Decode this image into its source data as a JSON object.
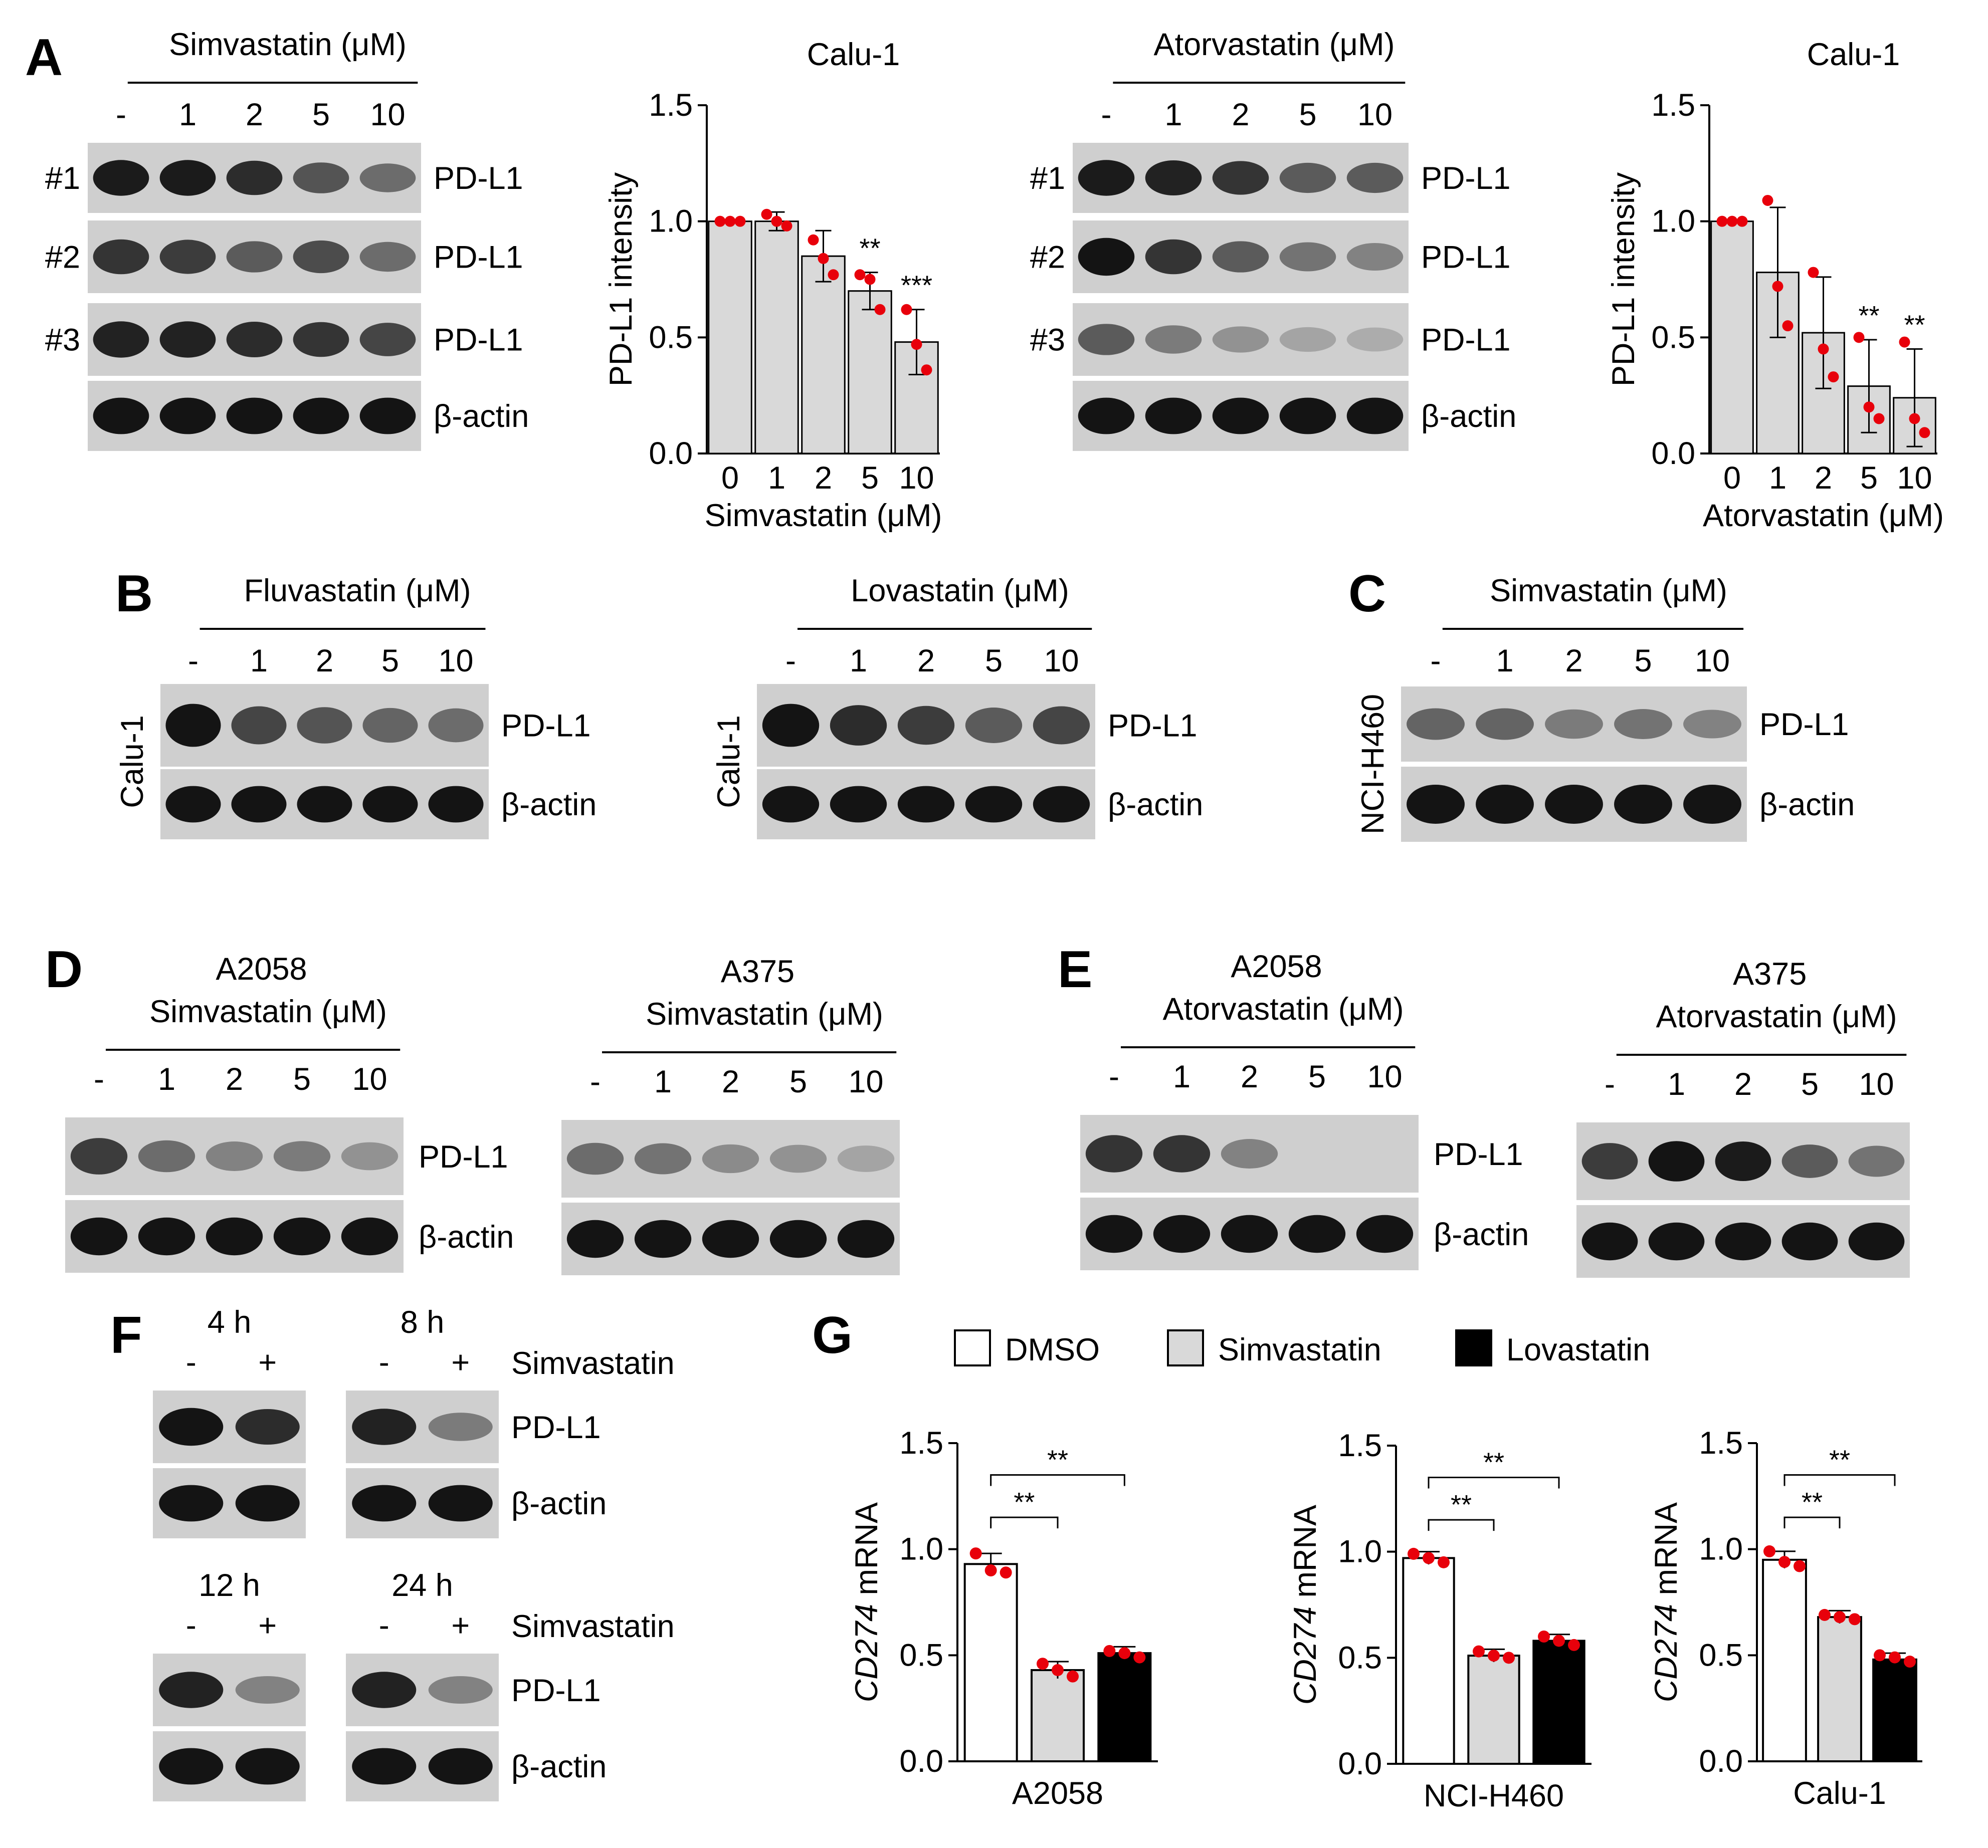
{
  "figure": {
    "panels": {
      "A": "A",
      "B": "B",
      "C": "C",
      "D": "D",
      "E": "E",
      "F": "F",
      "G": "G"
    },
    "blot_colors": {
      "band_dark": "#141414",
      "membrane": "#cfcfcf"
    },
    "panel_A": {
      "left": {
        "treatment": "Simvastatin (μM)",
        "lanes": [
          "-",
          "1",
          "2",
          "5",
          "10"
        ],
        "rows": [
          {
            "id": "#1",
            "label": "PD-L1",
            "intensity": [
              0.95,
              0.95,
              0.85,
              0.6,
              0.45
            ]
          },
          {
            "id": "#2",
            "label": "PD-L1",
            "intensity": [
              0.8,
              0.75,
              0.55,
              0.65,
              0.45
            ]
          },
          {
            "id": "#3",
            "label": "PD-L1",
            "intensity": [
              0.9,
              0.9,
              0.85,
              0.8,
              0.7
            ]
          },
          {
            "id": "",
            "label": "β-actin",
            "intensity": [
              1,
              1,
              1,
              1,
              1
            ]
          }
        ]
      },
      "right": {
        "treatment": "Atorvastatin (μM)",
        "lanes": [
          "-",
          "1",
          "2",
          "5",
          "10"
        ],
        "rows": [
          {
            "id": "#1",
            "label": "PD-L1",
            "intensity": [
              0.95,
              0.9,
              0.8,
              0.55,
              0.55
            ]
          },
          {
            "id": "#2",
            "label": "PD-L1",
            "intensity": [
              1,
              0.8,
              0.55,
              0.4,
              0.3
            ]
          },
          {
            "id": "#3",
            "label": "PD-L1",
            "intensity": [
              0.55,
              0.35,
              0.2,
              0.1,
              0.05
            ]
          },
          {
            "id": "",
            "label": "β-actin",
            "intensity": [
              1,
              1,
              1,
              1,
              1
            ]
          }
        ]
      }
    },
    "panel_B": {
      "left": {
        "treatment": "Fluvastatin (μM)",
        "cell": "Calu-1",
        "lanes": [
          "-",
          "1",
          "2",
          "5",
          "10"
        ],
        "rows": [
          {
            "label": "PD-L1",
            "intensity": [
              1,
              0.7,
              0.6,
              0.5,
              0.45
            ]
          },
          {
            "label": "β-actin",
            "intensity": [
              1,
              1,
              1,
              1,
              1
            ]
          }
        ]
      },
      "right": {
        "treatment": "Lovastatin (μM)",
        "cell": "Calu-1",
        "lanes": [
          "-",
          "1",
          "2",
          "5",
          "10"
        ],
        "rows": [
          {
            "label": "PD-L1",
            "intensity": [
              1,
              0.85,
              0.75,
              0.55,
              0.7
            ]
          },
          {
            "label": "β-actin",
            "intensity": [
              1,
              1,
              1,
              1,
              1
            ]
          }
        ]
      }
    },
    "panel_C": {
      "treatment": "Simvastatin (μM)",
      "cell": "NCI-H460",
      "lanes": [
        "-",
        "1",
        "2",
        "5",
        "10"
      ],
      "rows": [
        {
          "label": "PD-L1",
          "intensity": [
            0.5,
            0.5,
            0.35,
            0.4,
            0.3
          ]
        },
        {
          "label": "β-actin",
          "intensity": [
            1,
            1,
            1,
            1,
            1
          ]
        }
      ]
    },
    "panel_D": {
      "left": {
        "cell": "A2058",
        "treatment": "Simvastatin (μM)",
        "lanes": [
          "-",
          "1",
          "2",
          "5",
          "10"
        ],
        "rows": [
          {
            "label": "PD-L1",
            "intensity": [
              0.75,
              0.45,
              0.3,
              0.35,
              0.2
            ]
          },
          {
            "label": "β-actin",
            "intensity": [
              1,
              1,
              1,
              1,
              1
            ]
          }
        ]
      },
      "right": {
        "cell": "A375",
        "treatment": "Simvastatin (μM)",
        "lanes": [
          "-",
          "1",
          "2",
          "5",
          "10"
        ],
        "rows": [
          {
            "label": "PD-L1",
            "intensity": [
              0.45,
              0.4,
              0.25,
              0.2,
              0.1
            ]
          },
          {
            "label": "β-actin",
            "intensity": [
              1,
              1,
              1,
              1,
              1
            ]
          }
        ]
      }
    },
    "panel_E": {
      "left": {
        "cell": "A2058",
        "treatment": "Atorvastatin (μM)",
        "lanes": [
          "-",
          "1",
          "2",
          "5",
          "10"
        ],
        "rows": [
          {
            "label": "PD-L1",
            "intensity": [
              0.8,
              0.8,
              0.3,
              0,
              0
            ]
          },
          {
            "label": "β-actin",
            "intensity": [
              1,
              1,
              1,
              1,
              1
            ]
          }
        ]
      },
      "right": {
        "cell": "A375",
        "treatment": "Atorvastatin (μM)",
        "lanes": [
          "-",
          "1",
          "2",
          "5",
          "10"
        ],
        "rows": [
          {
            "label": "PD-L1",
            "intensity": [
              0.75,
              1,
              0.95,
              0.55,
              0.4
            ]
          },
          {
            "label": "β-actin",
            "intensity": [
              1,
              1,
              1,
              1,
              1
            ]
          }
        ]
      }
    },
    "panel_F": {
      "treatment": "Simvastatin",
      "blots": [
        {
          "time": "4 h",
          "lanes": [
            "-",
            "+"
          ],
          "pdl1": [
            1,
            0.85
          ],
          "actin": [
            1,
            1
          ]
        },
        {
          "time": "8 h",
          "lanes": [
            "-",
            "+"
          ],
          "pdl1": [
            0.9,
            0.35
          ],
          "actin": [
            1,
            1
          ]
        },
        {
          "time": "12 h",
          "lanes": [
            "-",
            "+"
          ],
          "pdl1": [
            0.9,
            0.3
          ],
          "actin": [
            1,
            1
          ]
        },
        {
          "time": "24 h",
          "lanes": [
            "-",
            "+"
          ],
          "pdl1": [
            0.9,
            0.3
          ],
          "actin": [
            1,
            1
          ]
        }
      ],
      "row_labels": [
        "PD-L1",
        "β-actin"
      ]
    }
  },
  "chart_data": [
    {
      "type": "bar",
      "title": "Calu-1",
      "xlabel": "Simvastatin (μM)",
      "ylabel": "PD-L1 intensity",
      "categories": [
        "0",
        "1",
        "2",
        "5",
        "10"
      ],
      "values": [
        1.0,
        1.0,
        0.85,
        0.7,
        0.48
      ],
      "errors": [
        0,
        0.04,
        0.11,
        0.08,
        0.14
      ],
      "points": [
        [
          1.0,
          1.0,
          1.0
        ],
        [
          1.03,
          1.0,
          0.98
        ],
        [
          0.92,
          0.84,
          0.77
        ],
        [
          0.77,
          0.75,
          0.62
        ],
        [
          0.62,
          0.47,
          0.36
        ]
      ],
      "significance": [
        "",
        "",
        "",
        "**",
        "***"
      ],
      "ylim": [
        0,
        1.5
      ],
      "yticks": [
        "0.0",
        "0.5",
        "1.0",
        "1.5"
      ],
      "bar_color": "#d9d9d9",
      "point_color": "#e8000b"
    },
    {
      "type": "bar",
      "title": "Calu-1",
      "xlabel": "Atorvastatin (μM)",
      "ylabel": "PD-L1 intensity",
      "categories": [
        "0",
        "1",
        "2",
        "5",
        "10"
      ],
      "values": [
        1.0,
        0.78,
        0.52,
        0.29,
        0.24
      ],
      "errors": [
        0,
        0.28,
        0.24,
        0.2,
        0.21
      ],
      "points": [
        [
          1.0,
          1.0,
          1.0
        ],
        [
          1.09,
          0.72,
          0.55
        ],
        [
          0.78,
          0.45,
          0.33
        ],
        [
          0.5,
          0.2,
          0.15
        ],
        [
          0.48,
          0.15,
          0.09
        ]
      ],
      "significance": [
        "",
        "",
        "",
        "**",
        "**"
      ],
      "ylim": [
        0,
        1.5
      ],
      "yticks": [
        "0.0",
        "0.5",
        "1.0",
        "1.5"
      ],
      "bar_color": "#d9d9d9",
      "point_color": "#e8000b"
    },
    {
      "type": "bar",
      "title": "",
      "xlabel": "A2058",
      "ylabel_italic": "CD274",
      "ylabel_rest": " mRNA",
      "series": [
        {
          "name": "DMSO",
          "values": [
            0.93
          ],
          "errors": [
            0.05
          ],
          "points": [
            [
              0.98,
              0.9,
              0.89
            ]
          ],
          "color": "#ffffff"
        },
        {
          "name": "Simvastatin",
          "values": [
            0.43
          ],
          "errors": [
            0.04
          ],
          "points": [
            [
              0.46,
              0.43,
              0.4
            ]
          ],
          "color": "#d9d9d9"
        },
        {
          "name": "Lovastatin",
          "values": [
            0.51
          ],
          "errors": [
            0.03
          ],
          "points": [
            [
              0.52,
              0.51,
              0.49
            ]
          ],
          "color": "#000000"
        }
      ],
      "comparisons": [
        {
          "from": "DMSO",
          "to": "Simvastatin",
          "label": "**"
        },
        {
          "from": "DMSO",
          "to": "Lovastatin",
          "label": "**"
        }
      ],
      "ylim": [
        0,
        1.5
      ],
      "yticks": [
        "0.0",
        "0.5",
        "1.0",
        "1.5"
      ],
      "point_color": "#e8000b"
    },
    {
      "type": "bar",
      "title": "",
      "xlabel": "NCI-H460",
      "ylabel_italic": "CD274",
      "ylabel_rest": " mRNA",
      "series": [
        {
          "name": "DMSO",
          "values": [
            0.97
          ],
          "errors": [
            0.03
          ],
          "points": [
            [
              0.99,
              0.97,
              0.95
            ]
          ],
          "color": "#ffffff"
        },
        {
          "name": "Simvastatin",
          "values": [
            0.51
          ],
          "errors": [
            0.03
          ],
          "points": [
            [
              0.53,
              0.51,
              0.5
            ]
          ],
          "color": "#d9d9d9"
        },
        {
          "name": "Lovastatin",
          "values": [
            0.58
          ],
          "errors": [
            0.03
          ],
          "points": [
            [
              0.6,
              0.58,
              0.56
            ]
          ],
          "color": "#000000"
        }
      ],
      "comparisons": [
        {
          "from": "DMSO",
          "to": "Simvastatin",
          "label": "**"
        },
        {
          "from": "DMSO",
          "to": "Lovastatin",
          "label": "**"
        }
      ],
      "ylim": [
        0,
        1.5
      ],
      "yticks": [
        "0.0",
        "0.5",
        "1.0",
        "1.5"
      ],
      "point_color": "#e8000b"
    },
    {
      "type": "bar",
      "title": "",
      "xlabel": "Calu-1",
      "ylabel_italic": "CD274",
      "ylabel_rest": " mRNA",
      "series": [
        {
          "name": "DMSO",
          "values": [
            0.95
          ],
          "errors": [
            0.04
          ],
          "points": [
            [
              0.99,
              0.94,
              0.92
            ]
          ],
          "color": "#ffffff"
        },
        {
          "name": "Simvastatin",
          "values": [
            0.68
          ],
          "errors": [
            0.03
          ],
          "points": [
            [
              0.69,
              0.68,
              0.67
            ]
          ],
          "color": "#d9d9d9"
        },
        {
          "name": "Lovastatin",
          "values": [
            0.48
          ],
          "errors": [
            0.03
          ],
          "points": [
            [
              0.5,
              0.49,
              0.47
            ]
          ],
          "color": "#000000"
        }
      ],
      "comparisons": [
        {
          "from": "DMSO",
          "to": "Simvastatin",
          "label": "**"
        },
        {
          "from": "DMSO",
          "to": "Lovastatin",
          "label": "**"
        }
      ],
      "ylim": [
        0,
        1.5
      ],
      "yticks": [
        "0.0",
        "0.5",
        "1.0",
        "1.5"
      ],
      "point_color": "#e8000b"
    }
  ],
  "legend_G": [
    {
      "name": "DMSO",
      "color": "#ffffff"
    },
    {
      "name": "Simvastatin",
      "color": "#d9d9d9"
    },
    {
      "name": "Lovastatin",
      "color": "#000000"
    }
  ]
}
